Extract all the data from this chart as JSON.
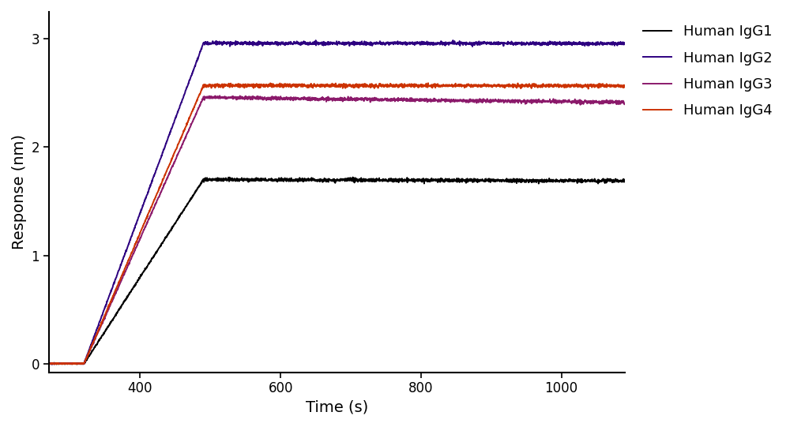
{
  "series": [
    {
      "label": "Human IgG1",
      "color": "#000000",
      "baseline_y": 0.0,
      "rise_start": 320,
      "rise_end": 490,
      "peak": 1.7,
      "dissoc_final": 1.63,
      "dissoc_k": 0.0003
    },
    {
      "label": "Human IgG2",
      "color": "#2d0080",
      "baseline_y": 0.0,
      "rise_start": 320,
      "rise_end": 490,
      "peak": 2.96,
      "dissoc_final": 2.91,
      "dissoc_k": 8e-05
    },
    {
      "label": "Human IgG3",
      "color": "#8b1a6b",
      "baseline_y": 0.0,
      "rise_start": 320,
      "rise_end": 490,
      "peak": 2.46,
      "dissoc_final": 2.3,
      "dissoc_k": 0.00055
    },
    {
      "label": "Human IgG4",
      "color": "#cc3300",
      "baseline_y": 0.0,
      "rise_start": 320,
      "rise_end": 490,
      "peak": 2.57,
      "dissoc_final": 2.52,
      "dissoc_k": 0.0001
    }
  ],
  "xlim": [
    270,
    1090
  ],
  "ylim": [
    -0.08,
    3.25
  ],
  "xticks": [
    400,
    600,
    800,
    1000
  ],
  "yticks": [
    0,
    1,
    2,
    3
  ],
  "xlabel": "Time (s)",
  "ylabel": "Response (nm)",
  "background_color": "#ffffff",
  "noise_amplitude": 0.008,
  "noise_pts_per_sec": 3,
  "linewidth": 1.4,
  "baseline_start": 270,
  "rise_start_global": 320,
  "dissoc_end": 1090,
  "legend_fontsize": 13,
  "axis_fontsize": 14,
  "tick_fontsize": 12
}
